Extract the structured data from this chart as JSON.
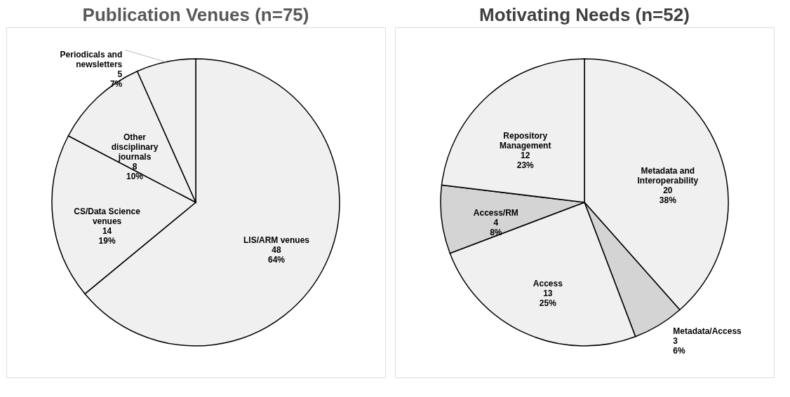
{
  "chart_data": [
    {
      "type": "pie",
      "title": "Publication Venues (n=75)",
      "categories": [
        "LIS/ARM venues",
        "CS/Data Science venues",
        "Other disciplinary journals",
        "Periodicals and newsletters"
      ],
      "values": [
        48,
        14,
        8,
        5
      ],
      "colors": [
        "#f0f0f0",
        "#f0f0f0",
        "#f0f0f0",
        "#f0f0f0"
      ],
      "value_labels": [
        "48\n64%",
        "14\n19%",
        "8\n10%",
        "5\n7%"
      ]
    },
    {
      "type": "pie",
      "title": "Motivating Needs (n=52)",
      "categories": [
        "Metadata and Interoperability",
        "Metadata/Access",
        "Access",
        "Access/RM",
        "Repository Management"
      ],
      "values": [
        20,
        3,
        13,
        4,
        12
      ],
      "colors": [
        "#f0f0f0",
        "#d4d4d4",
        "#f0f0f0",
        "#d4d4d4",
        "#f0f0f0"
      ],
      "value_labels": [
        "20\n38%",
        "3\n6%",
        "13\n25%",
        "4\n8%",
        "12\n23%"
      ]
    }
  ]
}
